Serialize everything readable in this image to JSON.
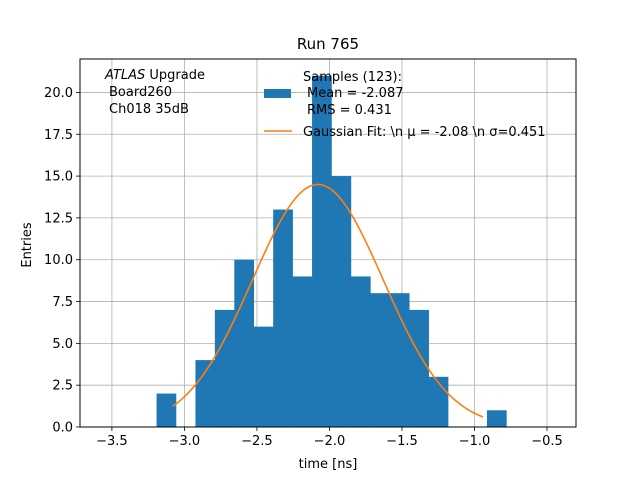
{
  "chart_data": {
    "type": "histogram",
    "title": "Run 765",
    "xlabel": "time [ns]",
    "ylabel": "Entries",
    "xlim": [
      -3.72,
      -0.3
    ],
    "ylim": [
      0,
      22
    ],
    "xticks": [
      -3.5,
      -3.0,
      -2.5,
      -2.0,
      -1.5,
      -1.0,
      -0.5
    ],
    "xtick_labels": [
      "−3.5",
      "−3.0",
      "−2.5",
      "−2.0",
      "−1.5",
      "−1.0",
      "−0.5"
    ],
    "yticks": [
      0.0,
      2.5,
      5.0,
      7.5,
      10.0,
      12.5,
      15.0,
      17.5,
      20.0
    ],
    "ytick_labels": [
      "0.0",
      "2.5",
      "5.0",
      "7.5",
      "10.0",
      "12.5",
      "15.0",
      "17.5",
      "20.0"
    ],
    "grid": true,
    "bin_edges": [
      -3.192,
      -3.058,
      -2.924,
      -2.79,
      -2.656,
      -2.522,
      -2.388,
      -2.254,
      -2.12,
      -1.986,
      -1.852,
      -1.718,
      -1.584,
      -1.45,
      -1.316,
      -1.182,
      -1.048,
      -0.914,
      -0.78
    ],
    "counts": [
      2,
      0,
      4,
      7,
      10,
      6,
      13,
      9,
      21,
      15,
      9,
      8,
      8,
      7,
      3,
      0,
      0,
      1
    ],
    "fit": {
      "mu": -2.08,
      "sigma": 0.451,
      "amplitude": 14.5,
      "x_range": [
        -3.08,
        -0.94
      ]
    },
    "annotation": {
      "line1_italic": "ATLAS",
      "line1_rest": " Upgrade",
      "line2": "Board260",
      "line3": "Ch018 35dB"
    },
    "legend": {
      "position": "upper-right",
      "entries": [
        {
          "type": "bar",
          "lines": [
            "Samples (123):",
            "Mean = -2.087",
            "RMS = 0.431"
          ]
        },
        {
          "type": "line",
          "lines": [
            "Gaussian Fit: \\n μ = -2.08 \\n σ=0.451"
          ]
        }
      ]
    },
    "colors": {
      "bars": "#1f77b4",
      "fit": "#ff7f0e",
      "grid": "#b0b0b0"
    }
  }
}
